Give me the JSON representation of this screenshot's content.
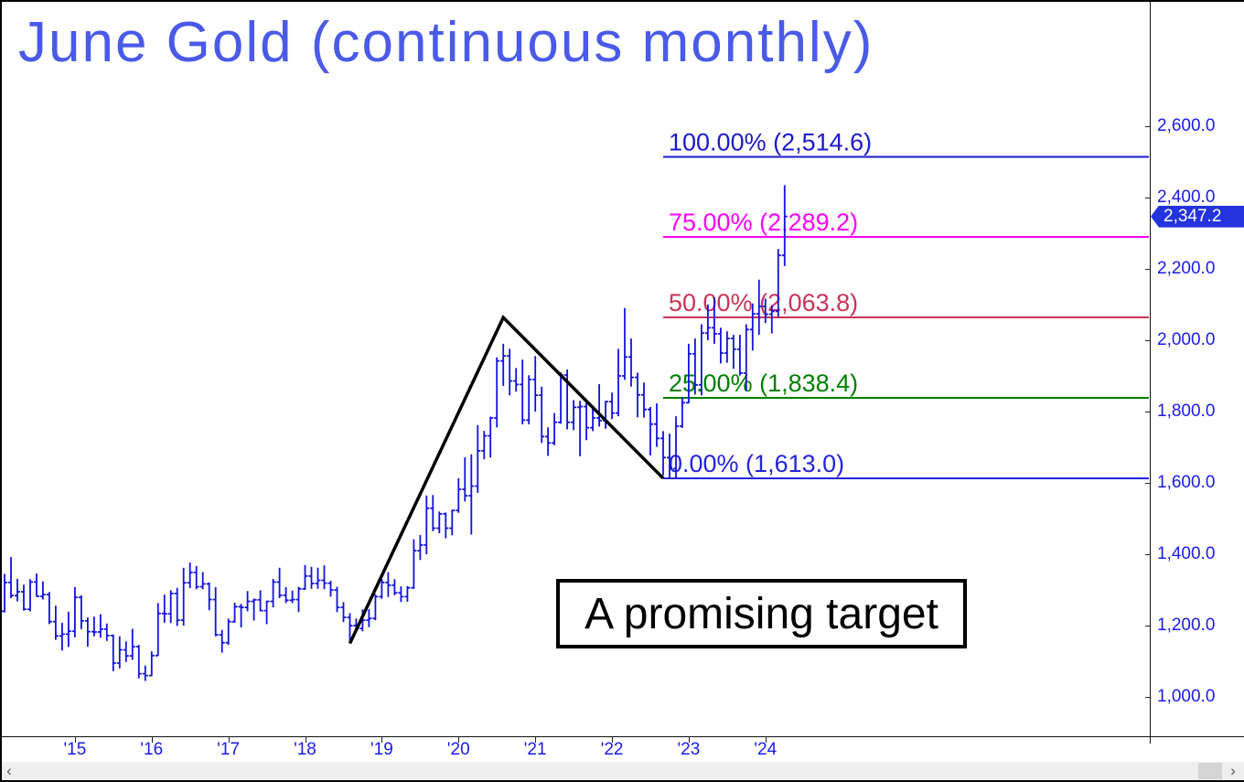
{
  "scrollbar": {
    "left_arrow": "‹",
    "right_arrow": "›"
  },
  "chart_data": {
    "type": "ohlc-bar",
    "title": "June Gold (continuous monthly)",
    "interval": "monthly",
    "start_month": "2014-02",
    "end_month": "2024-04",
    "annotation": "A promising target",
    "last_price": {
      "text": "2,347.2",
      "value": 2347.2
    },
    "colors": {
      "bars": "#1212dd",
      "trendline": "#000000",
      "title_text": "#4a5ae8",
      "axis_text": "#1b1bee",
      "badge_bg": "#2433dd",
      "badge_text": "#ffffff"
    },
    "y_axis": {
      "labels": [
        "2,600.0",
        "2,400.0",
        "2,200.0",
        "2,000.0",
        "1,800.0",
        "1,600.0",
        "1,400.0",
        "1,200.0",
        "1,000.0"
      ],
      "prices": [
        2600,
        2400,
        2200,
        2000,
        1800,
        1600,
        1400,
        1200,
        1000
      ]
    },
    "x_axis": {
      "labels": [
        "'15",
        "'16",
        "'17",
        "'18",
        "'19",
        "'20",
        "'21",
        "'22",
        "'23",
        "'24"
      ],
      "month_indices": [
        11,
        23,
        35,
        47,
        59,
        71,
        83,
        95,
        107,
        119
      ]
    },
    "fib_levels": [
      {
        "label": "100.00% (2,514.6)",
        "percent": 100,
        "price": 2514.6,
        "color": "#1a1acc"
      },
      {
        "label": "75.00% (2,289.2)",
        "percent": 75,
        "price": 2289.2,
        "color": "#ff00ff"
      },
      {
        "label": "50.00% (2,063.8)",
        "percent": 50,
        "price": 2063.8,
        "color": "#cc3355"
      },
      {
        "label": "25.00% (1,838.4)",
        "percent": 25,
        "price": 1838.4,
        "color": "#008000"
      },
      {
        "label": "0.00% (1,613.0)",
        "percent": 0,
        "price": 1613.0,
        "color": "#2424dd"
      }
    ],
    "fib_start_month": "2022-09",
    "trendline": {
      "color": "#000000",
      "anchors": [
        {
          "month": "2018-08",
          "price": 1150
        },
        {
          "month": "2020-08",
          "price": 2063.8
        },
        {
          "month": "2022-09",
          "price": 1613
        }
      ]
    },
    "bars_ohlc": [
      [
        1240,
        1345,
        1237,
        1321
      ],
      [
        1321,
        1392,
        1277,
        1284
      ],
      [
        1284,
        1331,
        1268,
        1295
      ],
      [
        1295,
        1315,
        1242,
        1246
      ],
      [
        1246,
        1330,
        1240,
        1322
      ],
      [
        1322,
        1346,
        1281,
        1282
      ],
      [
        1282,
        1324,
        1273,
        1287
      ],
      [
        1287,
        1294,
        1204,
        1211
      ],
      [
        1211,
        1256,
        1160,
        1171
      ],
      [
        1171,
        1208,
        1130,
        1176
      ],
      [
        1176,
        1239,
        1140,
        1184
      ],
      [
        1184,
        1308,
        1167,
        1279
      ],
      [
        1279,
        1285,
        1190,
        1213
      ],
      [
        1213,
        1223,
        1141,
        1183
      ],
      [
        1183,
        1225,
        1170,
        1182
      ],
      [
        1182,
        1232,
        1166,
        1190
      ],
      [
        1190,
        1206,
        1157,
        1172
      ],
      [
        1172,
        1175,
        1072,
        1095
      ],
      [
        1095,
        1170,
        1080,
        1132
      ],
      [
        1132,
        1156,
        1098,
        1115
      ],
      [
        1115,
        1191,
        1104,
        1141
      ],
      [
        1141,
        1146,
        1052,
        1065
      ],
      [
        1065,
        1088,
        1045,
        1060
      ],
      [
        1060,
        1128,
        1058,
        1116
      ],
      [
        1116,
        1263,
        1115,
        1234
      ],
      [
        1234,
        1287,
        1208,
        1233
      ],
      [
        1233,
        1299,
        1207,
        1290
      ],
      [
        1290,
        1306,
        1199,
        1215
      ],
      [
        1215,
        1362,
        1200,
        1320
      ],
      [
        1320,
        1377,
        1305,
        1349
      ],
      [
        1349,
        1367,
        1302,
        1309
      ],
      [
        1309,
        1350,
        1302,
        1317
      ],
      [
        1317,
        1321,
        1243,
        1273
      ],
      [
        1273,
        1308,
        1170,
        1174
      ],
      [
        1174,
        1188,
        1124,
        1152
      ],
      [
        1152,
        1220,
        1146,
        1211
      ],
      [
        1211,
        1264,
        1208,
        1253
      ],
      [
        1253,
        1261,
        1195,
        1251
      ],
      [
        1251,
        1297,
        1240,
        1268
      ],
      [
        1268,
        1276,
        1214,
        1272
      ],
      [
        1272,
        1299,
        1240,
        1242
      ],
      [
        1242,
        1270,
        1204,
        1268
      ],
      [
        1268,
        1331,
        1251,
        1322
      ],
      [
        1322,
        1362,
        1277,
        1285
      ],
      [
        1285,
        1308,
        1263,
        1271
      ],
      [
        1271,
        1298,
        1263,
        1273
      ],
      [
        1273,
        1309,
        1238,
        1303
      ],
      [
        1303,
        1370,
        1300,
        1339
      ],
      [
        1339,
        1365,
        1303,
        1318
      ],
      [
        1318,
        1362,
        1303,
        1327
      ],
      [
        1327,
        1369,
        1302,
        1319
      ],
      [
        1319,
        1326,
        1281,
        1300
      ],
      [
        1300,
        1309,
        1238,
        1251
      ],
      [
        1251,
        1266,
        1210,
        1223
      ],
      [
        1223,
        1235,
        1150,
        1200
      ],
      [
        1200,
        1220,
        1184,
        1192
      ],
      [
        1192,
        1246,
        1184,
        1215
      ],
      [
        1215,
        1246,
        1196,
        1220
      ],
      [
        1220,
        1288,
        1215,
        1281
      ],
      [
        1281,
        1331,
        1275,
        1321
      ],
      [
        1321,
        1350,
        1280,
        1313
      ],
      [
        1313,
        1330,
        1285,
        1292
      ],
      [
        1292,
        1310,
        1266,
        1281
      ],
      [
        1281,
        1311,
        1267,
        1306
      ],
      [
        1306,
        1442,
        1303,
        1410
      ],
      [
        1410,
        1454,
        1384,
        1426
      ],
      [
        1426,
        1565,
        1400,
        1529
      ],
      [
        1529,
        1566,
        1465,
        1473
      ],
      [
        1473,
        1520,
        1459,
        1513
      ],
      [
        1513,
        1517,
        1445,
        1473
      ],
      [
        1473,
        1525,
        1453,
        1523
      ],
      [
        1523,
        1613,
        1516,
        1582
      ],
      [
        1582,
        1672,
        1548,
        1564
      ],
      [
        1564,
        1680,
        1455,
        1591
      ],
      [
        1591,
        1762,
        1572,
        1690
      ],
      [
        1690,
        1746,
        1666,
        1732
      ],
      [
        1732,
        1786,
        1671,
        1782
      ],
      [
        1782,
        1952,
        1756,
        1942
      ],
      [
        1942,
        1990,
        1872,
        1956
      ],
      [
        1956,
        1976,
        1845,
        1886
      ],
      [
        1886,
        1922,
        1856,
        1876
      ],
      [
        1876,
        1946,
        1764,
        1776
      ],
      [
        1776,
        1902,
        1764,
        1890
      ],
      [
        1890,
        1956,
        1800,
        1846
      ],
      [
        1846,
        1870,
        1712,
        1730
      ],
      [
        1730,
        1756,
        1676,
        1712
      ],
      [
        1712,
        1796,
        1706,
        1770
      ],
      [
        1770,
        1910,
        1766,
        1902
      ],
      [
        1902,
        1918,
        1750,
        1770
      ],
      [
        1770,
        1832,
        1748,
        1812
      ],
      [
        1812,
        1830,
        1675,
        1814
      ],
      [
        1814,
        1834,
        1720,
        1755
      ],
      [
        1755,
        1813,
        1745,
        1782
      ],
      [
        1782,
        1877,
        1758,
        1775
      ],
      [
        1775,
        1830,
        1752,
        1828
      ],
      [
        1828,
        1853,
        1779,
        1796
      ],
      [
        1796,
        1976,
        1787,
        1900
      ],
      [
        1900,
        2090,
        1889,
        1953
      ],
      [
        1953,
        2005,
        1870,
        1896
      ],
      [
        1896,
        1909,
        1784,
        1847
      ],
      [
        1847,
        1881,
        1783,
        1806
      ],
      [
        1806,
        1813,
        1677,
        1765
      ],
      [
        1765,
        1823,
        1701,
        1725
      ],
      [
        1725,
        1745,
        1621,
        1671
      ],
      [
        1671,
        1738,
        1613,
        1640
      ],
      [
        1640,
        1787,
        1613,
        1759
      ],
      [
        1759,
        1841,
        1754,
        1825
      ],
      [
        1825,
        1990,
        1823,
        1962
      ],
      [
        1962,
        2005,
        1848,
        1875
      ],
      [
        1875,
        2045,
        1845,
        2020
      ],
      [
        2020,
        2100,
        2000,
        2035
      ],
      [
        2035,
        2120,
        1990,
        2018
      ],
      [
        2018,
        2035,
        1935,
        1964
      ],
      [
        1964,
        2025,
        1937,
        2005
      ],
      [
        2005,
        2015,
        1920,
        1975
      ],
      [
        1975,
        2015,
        1901,
        1908
      ],
      [
        1908,
        2045,
        1858,
        2030
      ],
      [
        2030,
        2103,
        1971,
        2074
      ],
      [
        2074,
        2170,
        2015,
        2095
      ],
      [
        2095,
        2117,
        2048,
        2073
      ],
      [
        2073,
        2098,
        2019,
        2081
      ],
      [
        2081,
        2256,
        2065,
        2238
      ],
      [
        2238,
        2435,
        2208,
        2347.2
      ]
    ]
  }
}
